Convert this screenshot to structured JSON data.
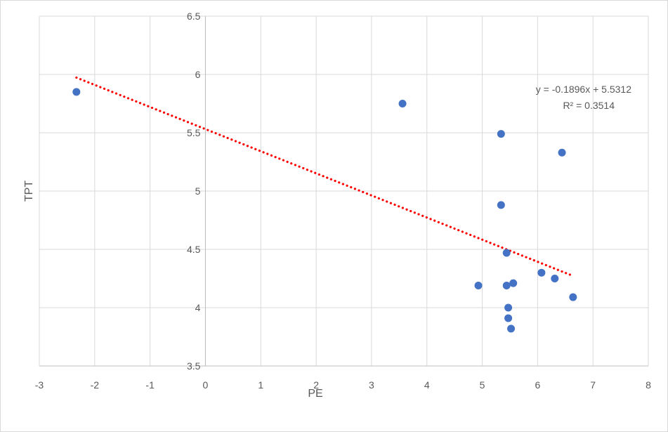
{
  "chart_data": {
    "type": "scatter",
    "xlabel": "PE",
    "ylabel": "TPT",
    "xlim": [
      -3,
      8
    ],
    "ylim": [
      3.5,
      6.5
    ],
    "x_ticks": [
      "-3",
      "-2",
      "-1",
      "0",
      "1",
      "2",
      "3",
      "4",
      "5",
      "6",
      "7",
      "8"
    ],
    "y_ticks": [
      "3.5",
      "4",
      "4.5",
      "5",
      "5.5",
      "6",
      "6.5"
    ],
    "grid": true,
    "point_color": "#4472c4",
    "points": [
      {
        "x": -2.33,
        "y": 5.85
      },
      {
        "x": 3.56,
        "y": 5.75
      },
      {
        "x": 5.34,
        "y": 5.49
      },
      {
        "x": 6.44,
        "y": 5.33
      },
      {
        "x": 5.34,
        "y": 4.88
      },
      {
        "x": 5.44,
        "y": 4.47
      },
      {
        "x": 6.07,
        "y": 4.3
      },
      {
        "x": 6.31,
        "y": 4.25
      },
      {
        "x": 4.93,
        "y": 4.19
      },
      {
        "x": 5.44,
        "y": 4.19
      },
      {
        "x": 5.56,
        "y": 4.21
      },
      {
        "x": 6.64,
        "y": 4.09
      },
      {
        "x": 5.47,
        "y": 4.0
      },
      {
        "x": 5.47,
        "y": 3.91
      },
      {
        "x": 5.52,
        "y": 3.82
      }
    ],
    "trendline": {
      "type": "linear",
      "slope": -0.1896,
      "intercept": 5.5312,
      "x_range": [
        -2.33,
        6.64
      ],
      "color": "#ff0000",
      "equation_label": "y = -0.1896x + 5.5312",
      "r2_label": "R² = 0.3514"
    }
  }
}
